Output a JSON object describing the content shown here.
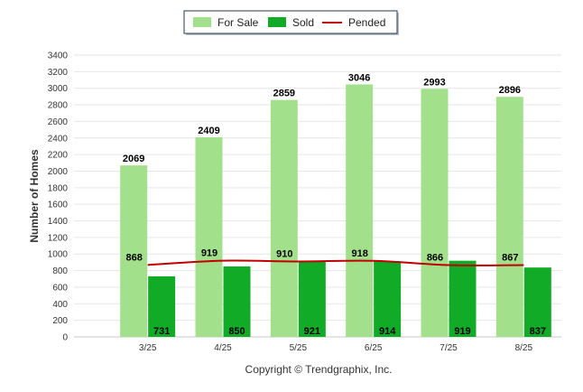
{
  "chart_data": {
    "type": "bar",
    "categories": [
      "3/25",
      "4/25",
      "5/25",
      "6/25",
      "7/25",
      "8/25"
    ],
    "series": [
      {
        "name": "For Sale",
        "type": "bar",
        "color": "#a3e08c",
        "values": [
          2069,
          2409,
          2859,
          3046,
          2993,
          2896
        ]
      },
      {
        "name": "Sold",
        "type": "bar",
        "color": "#11ab28",
        "values": [
          731,
          850,
          921,
          914,
          919,
          837
        ]
      },
      {
        "name": "Pended",
        "type": "line",
        "color": "#c00000",
        "values": [
          868,
          919,
          910,
          918,
          866,
          867
        ]
      }
    ],
    "title": "",
    "xlabel": "",
    "ylabel": "Number of Homes",
    "ylim": [
      0,
      3400
    ],
    "yticks": [
      0,
      200,
      400,
      600,
      800,
      1000,
      1200,
      1400,
      1600,
      1800,
      2000,
      2200,
      2400,
      2600,
      2800,
      3000,
      3200,
      3400
    ],
    "grid": true,
    "legend": "top-center",
    "credit": "Copyright © Trendgraphix, Inc."
  }
}
